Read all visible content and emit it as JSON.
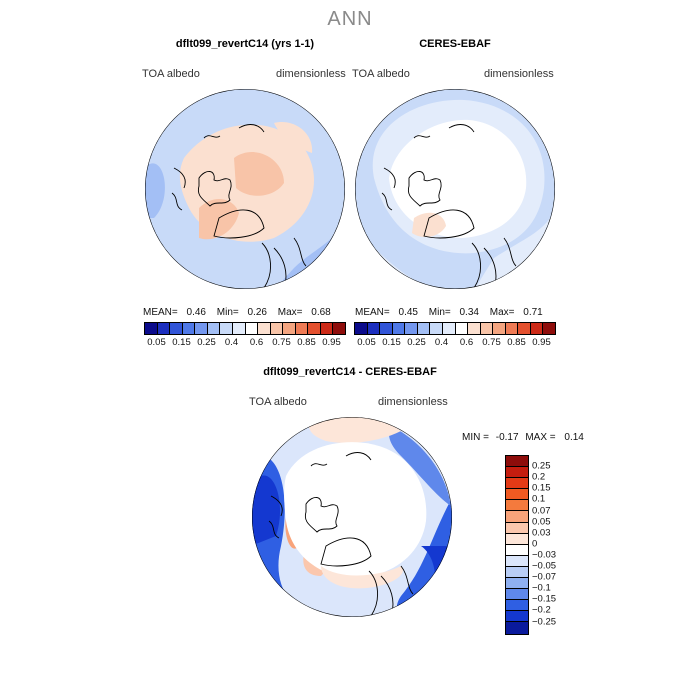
{
  "figure_title": "ANN",
  "panels": [
    {
      "title": "dflt099_revertC14 (yrs 1-1)",
      "left_label": "TOA albedo",
      "right_label": "dimensionless",
      "stats": {
        "mean_label": "MEAN=",
        "mean": "0.46",
        "min_label": "Min=",
        "min": "0.26",
        "max_label": "Max=",
        "max": "0.68"
      }
    },
    {
      "title": "CERES-EBAF",
      "left_label": "TOA albedo",
      "right_label": "dimensionless",
      "stats": {
        "mean_label": "MEAN=",
        "mean": "0.45",
        "min_label": "Min=",
        "min": "0.34",
        "max_label": "Max=",
        "max": "0.71"
      }
    },
    {
      "title": "dflt099_revertC14 - CERES-EBAF",
      "left_label": "TOA albedo",
      "right_label": "dimensionless",
      "stats": {
        "min_label": "MIN =",
        "min": "-0.17",
        "max_label": "MAX =",
        "max": "0.14"
      }
    }
  ],
  "chart_data": [
    {
      "type": "heatmap",
      "projection": "north-polar-stereographic",
      "colorbar": {
        "orientation": "horizontal",
        "labels": [
          "0.05",
          "0.15",
          "0.25",
          "0.4",
          "0.6",
          "0.75",
          "0.85",
          "0.95"
        ],
        "colors": [
          "#0b0b8c",
          "#1c2fbf",
          "#3155d8",
          "#4f79e8",
          "#7397ef",
          "#a3bff5",
          "#c8daf8",
          "#e3ecfb",
          "#ffffff",
          "#fbe0d0",
          "#f8c4a8",
          "#f4a580",
          "#ef7b55",
          "#e4512f",
          "#cc2a17",
          "#8e0d0b"
        ]
      }
    },
    {
      "type": "heatmap",
      "projection": "north-polar-stereographic",
      "colorbar": {
        "orientation": "horizontal",
        "labels": [
          "0.05",
          "0.15",
          "0.25",
          "0.4",
          "0.6",
          "0.75",
          "0.85",
          "0.95"
        ],
        "colors": [
          "#0b0b8c",
          "#1c2fbf",
          "#3155d8",
          "#4f79e8",
          "#7397ef",
          "#a3bff5",
          "#c8daf8",
          "#e3ecfb",
          "#ffffff",
          "#fbe0d0",
          "#f8c4a8",
          "#f4a580",
          "#ef7b55",
          "#e4512f",
          "#cc2a17",
          "#8e0d0b"
        ]
      }
    },
    {
      "type": "heatmap",
      "projection": "north-polar-stereographic",
      "colorbar": {
        "orientation": "vertical",
        "labels": [
          "0.25",
          "0.2",
          "0.15",
          "0.1",
          "0.07",
          "0.05",
          "0.03",
          "0",
          "-0.03",
          "-0.05",
          "-0.07",
          "-0.1",
          "-0.15",
          "-0.2",
          "-0.25"
        ],
        "colors": [
          "#8e0d0b",
          "#c51d0f",
          "#e33a16",
          "#f05a22",
          "#f47a3d",
          "#f8a37a",
          "#fbc7ad",
          "#fde6d9",
          "#ffffff",
          "#dbe6fb",
          "#b9cef6",
          "#8fb0f1",
          "#5f88eb",
          "#2f5fe3",
          "#1438d0",
          "#0a1a9c"
        ]
      }
    }
  ]
}
